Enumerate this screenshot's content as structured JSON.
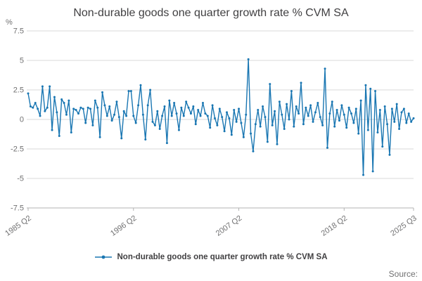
{
  "title": "Non-durable goods one quarter growth rate % CVM SA",
  "y_axis_unit_label": "%",
  "source_label": "Source:",
  "legend": {
    "label": "Non-durable goods one quarter growth rate % CVM SA"
  },
  "colors": {
    "line": "#1976b2",
    "grid": "#d9d9d9",
    "axis": "#b3b3b3",
    "title_text": "#414042",
    "tick_text": "#707071"
  },
  "chart_data": {
    "type": "line",
    "title": "Non-durable goods one quarter growth rate % CVM SA",
    "xlabel": "",
    "ylabel": "%",
    "ylim": [
      -7.5,
      7.5
    ],
    "y_ticks": [
      7.5,
      5,
      2.5,
      0,
      -2.5,
      -5,
      -7.5
    ],
    "grid": "horizontal",
    "legend_position": "bottom",
    "x_start": "1985 Q2",
    "x_end": "2025 Q3",
    "x_frequency": "quarterly",
    "x_tick_labels": [
      "1985 Q2",
      "1996 Q2",
      "2007 Q2",
      "2018 Q2",
      "2025 Q3"
    ],
    "x_tick_indices": [
      0,
      44,
      88,
      132,
      161
    ],
    "series": [
      {
        "name": "Non-durable goods one quarter growth rate % CVM SA",
        "values": [
          2.2,
          1.1,
          1.0,
          1.4,
          0.9,
          0.3,
          2.8,
          0.7,
          1.0,
          2.8,
          -0.9,
          1.9,
          0.6,
          -1.4,
          1.7,
          1.4,
          0.4,
          1.6,
          -1.1,
          0.9,
          0.8,
          0.5,
          1.0,
          0.9,
          -0.3,
          1.0,
          0.9,
          -0.5,
          1.6,
          1.0,
          -1.5,
          2.3,
          1.2,
          0.3,
          1.1,
          -0.1,
          0.4,
          1.5,
          0.2,
          -1.6,
          0.7,
          0.3,
          2.4,
          2.4,
          0.3,
          -0.3,
          1.2,
          2.9,
          0.4,
          -1.7,
          1.2,
          2.5,
          -0.2,
          -0.5,
          0.7,
          -0.8,
          0.3,
          1.1,
          -2.0,
          1.6,
          0.3,
          1.4,
          0.5,
          -0.9,
          1.0,
          0.3,
          1.5,
          1.0,
          0.5,
          1.1,
          -0.4,
          0.8,
          0.3,
          1.4,
          0.5,
          0.3,
          -0.7,
          1.2,
          0.1,
          -0.5,
          0.9,
          0.2,
          -1.0,
          0.6,
          0.1,
          -1.3,
          0.8,
          -0.2,
          0.9,
          -0.3,
          -1.5,
          0.4,
          5.1,
          -1.2,
          -2.7,
          -0.4,
          0.8,
          -0.6,
          1.1,
          0.2,
          -1.9,
          3.0,
          -0.5,
          0.7,
          -2.1,
          1.5,
          0.4,
          -0.8,
          1.3,
          0.0,
          2.4,
          -0.6,
          1.1,
          0.5,
          3.1,
          -0.4,
          1.0,
          0.3,
          1.2,
          -0.2,
          0.6,
          1.4,
          0.2,
          -0.5,
          4.3,
          -2.4,
          0.5,
          1.5,
          -0.6,
          0.8,
          -0.1,
          1.2,
          0.4,
          -0.7,
          1.0,
          0.5,
          -0.3,
          0.9,
          -1.2,
          1.6,
          -4.7,
          2.9,
          -0.9,
          2.6,
          -4.4,
          2.4,
          -1.1,
          0.8,
          -2.3,
          1.1,
          -0.4,
          -3.0,
          0.9,
          -0.2,
          1.3,
          -0.8,
          0.6,
          0.9,
          -0.3,
          0.5,
          -0.2,
          0.1
        ]
      }
    ]
  }
}
